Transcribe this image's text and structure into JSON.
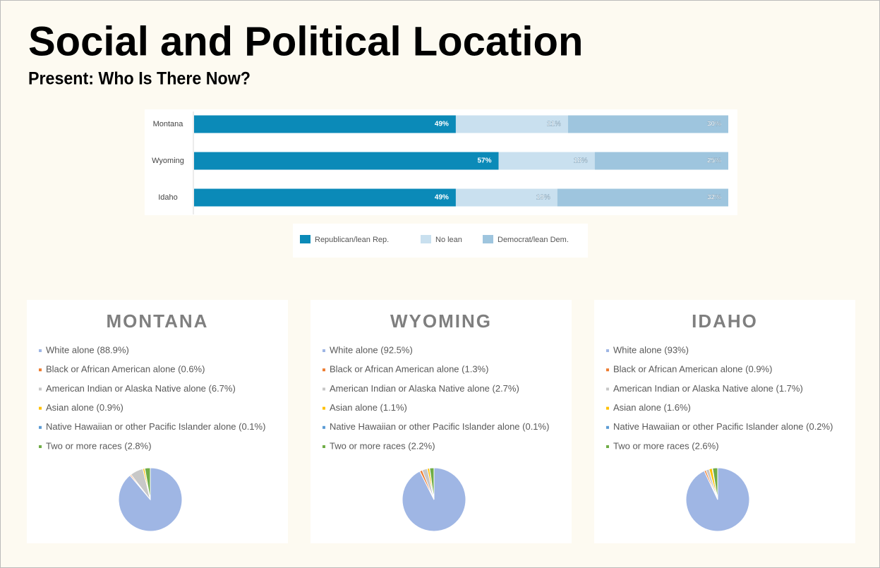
{
  "header": {
    "title": "Social and Political Location",
    "subtitle": "Present: Who Is There Now?"
  },
  "chart_data": [
    {
      "type": "bar",
      "orientation": "horizontal",
      "stacked": true,
      "categories": [
        "Montana",
        "Wyoming",
        "Idaho"
      ],
      "xlim": [
        0,
        100
      ],
      "series": [
        {
          "name": "Republican/lean Rep.",
          "color": "#0b8ab8",
          "values": [
            49,
            57,
            49
          ],
          "value_labels": [
            "49%",
            "57%",
            "49%"
          ]
        },
        {
          "name": "No lean",
          "color": "#c9e0ef",
          "values": [
            21,
            18,
            19
          ],
          "value_labels": [
            "21%",
            "18%",
            "19%"
          ]
        },
        {
          "name": "Democrat/lean Dem.",
          "color": "#9ec5de",
          "values": [
            30,
            25,
            32
          ],
          "value_labels": [
            "30%",
            "25%",
            "32%"
          ]
        }
      ]
    },
    {
      "type": "pie",
      "title": "MONTANA",
      "categories": [
        "White alone (88.9%)",
        "Black or African American alone (0.6%)",
        "American Indian or Alaska Native alone (6.7%)",
        "Asian alone (0.9%)",
        "Native Hawaiian or other Pacific Islander alone (0.1%)",
        "Two or more races (2.8%)"
      ],
      "values": [
        88.9,
        0.6,
        6.7,
        0.9,
        0.1,
        2.8
      ],
      "colors": [
        "#9fb6e4",
        "#ed7d31",
        "#c8c8c8",
        "#ffc000",
        "#5b9bd5",
        "#70ad47"
      ]
    },
    {
      "type": "pie",
      "title": "WYOMING",
      "categories": [
        "White alone (92.5%)",
        "Black or African American alone (1.3%)",
        "American Indian or Alaska Native alone (2.7%)",
        "Asian alone (1.1%)",
        "Native Hawaiian or other Pacific Islander alone (0.1%)",
        "Two or more races (2.2%)"
      ],
      "values": [
        92.5,
        1.3,
        2.7,
        1.1,
        0.1,
        2.2
      ],
      "colors": [
        "#9fb6e4",
        "#ed7d31",
        "#c8c8c8",
        "#ffc000",
        "#5b9bd5",
        "#70ad47"
      ]
    },
    {
      "type": "pie",
      "title": "IDAHO",
      "categories": [
        "White alone (93%)",
        "Black or African American alone (0.9%)",
        "American Indian or Alaska Native alone (1.7%)",
        "Asian alone (1.6%)",
        "Native Hawaiian or other Pacific Islander alone (0.2%)",
        "Two or more races (2.6%)"
      ],
      "values": [
        93,
        0.9,
        1.7,
        1.6,
        0.2,
        2.6
      ],
      "colors": [
        "#9fb6e4",
        "#ed7d31",
        "#c8c8c8",
        "#ffc000",
        "#5b9bd5",
        "#70ad47"
      ]
    }
  ]
}
